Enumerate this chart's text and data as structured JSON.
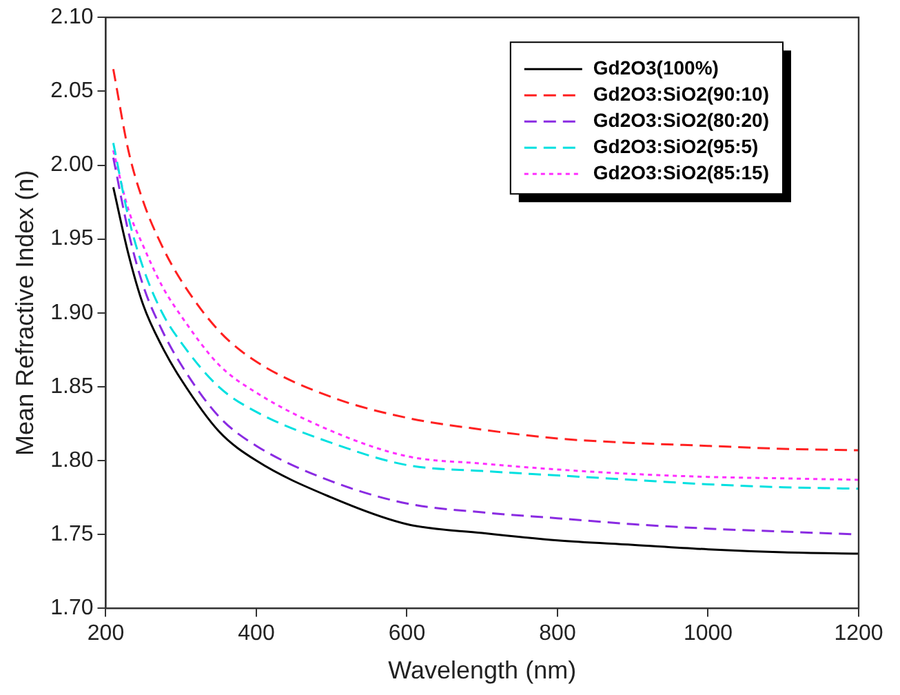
{
  "chart_data": {
    "type": "line",
    "xlabel": "Wavelength (nm)",
    "ylabel": "Mean Refractive Index (n)",
    "x": [
      210,
      230,
      250,
      275,
      300,
      350,
      400,
      500,
      600,
      700,
      800,
      900,
      1000,
      1100,
      1200
    ],
    "series": [
      {
        "name": "Gd2O3(100%)",
        "color": "#000000",
        "line_style": "solid",
        "values": [
          1.985,
          1.94,
          1.905,
          1.877,
          1.855,
          1.82,
          1.8,
          1.775,
          1.757,
          1.751,
          1.746,
          1.743,
          1.74,
          1.738,
          1.737
        ]
      },
      {
        "name": "Gd2O3:SiO2(90:10)",
        "color": "#ff2020",
        "line_style": "dashed",
        "values": [
          2.065,
          2.01,
          1.975,
          1.945,
          1.922,
          1.888,
          1.867,
          1.843,
          1.829,
          1.821,
          1.815,
          1.812,
          1.81,
          1.808,
          1.807
        ]
      },
      {
        "name": "Gd2O3:SiO2(80:20)",
        "color": "#8a2be2",
        "line_style": "dashed",
        "values": [
          2.005,
          1.955,
          1.918,
          1.888,
          1.865,
          1.83,
          1.81,
          1.786,
          1.771,
          1.765,
          1.761,
          1.757,
          1.754,
          1.752,
          1.75
        ]
      },
      {
        "name": "Gd2O3:SiO2(95:5)",
        "color": "#00e0e0",
        "line_style": "dashed",
        "values": [
          2.015,
          1.965,
          1.93,
          1.9,
          1.88,
          1.85,
          1.833,
          1.812,
          1.797,
          1.793,
          1.79,
          1.787,
          1.784,
          1.782,
          1.781
        ]
      },
      {
        "name": "Gd2O3:SiO2(85:15)",
        "color": "#ff30ff",
        "line_style": "dotted",
        "values": [
          2.01,
          1.97,
          1.945,
          1.918,
          1.898,
          1.865,
          1.846,
          1.82,
          1.803,
          1.798,
          1.794,
          1.791,
          1.789,
          1.788,
          1.787
        ]
      }
    ],
    "xlim": [
      200,
      1200
    ],
    "xticks": [
      200,
      400,
      600,
      800,
      1000,
      1200
    ],
    "ylim": [
      1.7,
      2.1
    ],
    "yticks": [
      {
        "value": 1.7,
        "label": "1.70"
      },
      {
        "value": 1.75,
        "label": "1.75"
      },
      {
        "value": 1.8,
        "label": "1.80"
      },
      {
        "value": 1.85,
        "label": "1.85"
      },
      {
        "value": 1.9,
        "label": "1.90"
      },
      {
        "value": 1.95,
        "label": "1.95"
      },
      {
        "value": 2.0,
        "label": "2.00"
      },
      {
        "value": 2.05,
        "label": "2.05"
      },
      {
        "value": 2.1,
        "label": "2.10"
      }
    ],
    "grid": false,
    "legend": "top right",
    "marker": "none"
  }
}
